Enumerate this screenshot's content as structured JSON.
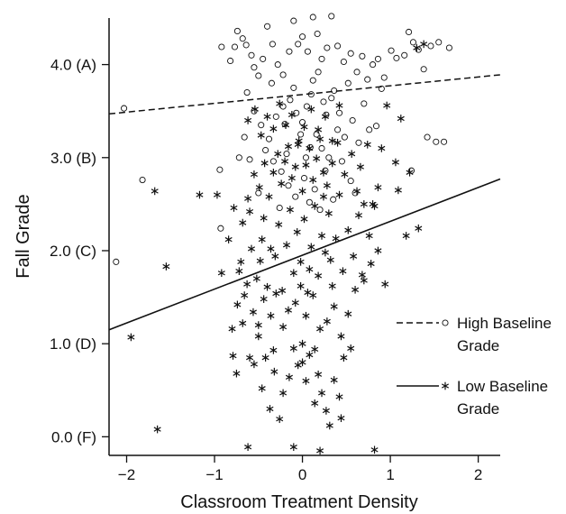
{
  "chart_data": {
    "type": "scatter",
    "xlabel": "Classroom Treatment Density",
    "ylabel": "Fall Grade",
    "xlim": [
      -2.2,
      2.25
    ],
    "ylim": [
      -0.2,
      4.5
    ],
    "x_ticks": [
      {
        "value": -2,
        "label": "−2"
      },
      {
        "value": -1,
        "label": "−1"
      },
      {
        "value": 0,
        "label": "0"
      },
      {
        "value": 1,
        "label": "1"
      },
      {
        "value": 2,
        "label": "2"
      }
    ],
    "y_ticks": [
      {
        "value": 0,
        "label": "0.0 (F)"
      },
      {
        "value": 1,
        "label": "1.0 (D)"
      },
      {
        "value": 2,
        "label": "2.0 (C)"
      },
      {
        "value": 3,
        "label": "3.0 (B)"
      },
      {
        "value": 4,
        "label": "4.0 (A)"
      }
    ],
    "grid": false,
    "legend_position": "right",
    "series": [
      {
        "name": "High Baseline Grade",
        "legend_line1": "High Baseline",
        "legend_line2": "Grade",
        "marker": "open-circle",
        "line_style": "dashed",
        "color": "#111111",
        "fit_line": {
          "x": [
            -2.2,
            2.25
          ],
          "y": [
            3.47,
            3.89
          ]
        },
        "points": [
          [
            -2.03,
            3.53
          ],
          [
            -2.12,
            1.88
          ],
          [
            -1.82,
            2.76
          ],
          [
            -0.93,
            2.24
          ],
          [
            -0.94,
            2.87
          ],
          [
            -0.92,
            4.19
          ],
          [
            -0.82,
            4.04
          ],
          [
            -0.77,
            4.19
          ],
          [
            -0.74,
            4.36
          ],
          [
            -0.68,
            4.28
          ],
          [
            -0.64,
            4.21
          ],
          [
            -0.58,
            4.1
          ],
          [
            -0.55,
            3.97
          ],
          [
            -0.5,
            3.88
          ],
          [
            -0.45,
            4.06
          ],
          [
            -0.4,
            4.41
          ],
          [
            -0.34,
            4.22
          ],
          [
            -0.28,
            4.0
          ],
          [
            -0.22,
            3.89
          ],
          [
            -0.15,
            4.14
          ],
          [
            -0.1,
            4.47
          ],
          [
            -0.05,
            4.22
          ],
          [
            0.0,
            4.3
          ],
          [
            0.06,
            4.14
          ],
          [
            0.12,
            4.51
          ],
          [
            0.17,
            4.33
          ],
          [
            0.22,
            4.06
          ],
          [
            0.28,
            4.18
          ],
          [
            0.33,
            4.52
          ],
          [
            0.4,
            4.2
          ],
          [
            0.47,
            4.03
          ],
          [
            0.55,
            4.12
          ],
          [
            0.62,
            3.92
          ],
          [
            0.68,
            4.09
          ],
          [
            0.74,
            3.84
          ],
          [
            0.8,
            4.0
          ],
          [
            0.86,
            4.06
          ],
          [
            0.93,
            3.86
          ],
          [
            1.01,
            4.15
          ],
          [
            1.07,
            4.07
          ],
          [
            1.16,
            4.1
          ],
          [
            1.26,
            4.24
          ],
          [
            1.32,
            4.16
          ],
          [
            1.46,
            4.2
          ],
          [
            1.55,
            4.24
          ],
          [
            1.67,
            4.18
          ],
          [
            1.21,
            4.35
          ],
          [
            1.38,
            3.95
          ],
          [
            -0.63,
            3.7
          ],
          [
            -0.55,
            3.5
          ],
          [
            -0.47,
            3.35
          ],
          [
            -0.38,
            3.2
          ],
          [
            -0.3,
            3.44
          ],
          [
            -0.22,
            3.55
          ],
          [
            -0.14,
            3.62
          ],
          [
            -0.07,
            3.48
          ],
          [
            0.0,
            3.38
          ],
          [
            0.05,
            3.55
          ],
          [
            0.1,
            3.68
          ],
          [
            0.16,
            3.25
          ],
          [
            0.22,
            3.1
          ],
          [
            0.27,
            3.46
          ],
          [
            0.33,
            3.64
          ],
          [
            0.4,
            3.3
          ],
          [
            0.48,
            3.22
          ],
          [
            0.57,
            3.4
          ],
          [
            0.64,
            3.16
          ],
          [
            0.7,
            3.58
          ],
          [
            0.76,
            3.3
          ],
          [
            0.84,
            3.34
          ],
          [
            0.9,
            3.74
          ],
          [
            1.24,
            2.86
          ],
          [
            1.42,
            3.22
          ],
          [
            1.52,
            3.17
          ],
          [
            1.61,
            3.17
          ],
          [
            -0.42,
            3.08
          ],
          [
            -0.33,
            2.96
          ],
          [
            -0.24,
            2.85
          ],
          [
            -0.16,
            2.7
          ],
          [
            -0.08,
            2.58
          ],
          [
            0.02,
            2.78
          ],
          [
            0.08,
            2.52
          ],
          [
            0.14,
            2.66
          ],
          [
            0.2,
            2.44
          ],
          [
            0.26,
            2.86
          ],
          [
            0.35,
            2.55
          ],
          [
            0.45,
            2.96
          ],
          [
            0.55,
            2.75
          ],
          [
            -0.26,
            2.46
          ],
          [
            -0.72,
            3.0
          ],
          [
            -0.66,
            3.22
          ],
          [
            -0.6,
            2.98
          ],
          [
            -0.18,
            3.04
          ],
          [
            0.04,
            3.0
          ],
          [
            0.3,
            3.0
          ],
          [
            -0.5,
            2.62
          ],
          [
            0.6,
            2.62
          ],
          [
            -0.35,
            3.8
          ],
          [
            0.12,
            3.83
          ],
          [
            0.36,
            3.72
          ],
          [
            -0.1,
            3.75
          ],
          [
            0.18,
            3.92
          ],
          [
            0.52,
            3.8
          ],
          [
            0.24,
            3.6
          ],
          [
            -0.02,
            3.25
          ],
          [
            0.09,
            3.11
          ],
          [
            -0.2,
            3.36
          ],
          [
            0.42,
            3.48
          ]
        ]
      },
      {
        "name": "Low Baseline Grade",
        "legend_line1": "Low Baseline",
        "legend_line2": "Grade",
        "marker": "asterisk",
        "line_style": "solid",
        "color": "#111111",
        "fit_line": {
          "x": [
            -2.2,
            2.25
          ],
          "y": [
            1.15,
            2.77
          ]
        },
        "points": [
          [
            -1.95,
            1.07
          ],
          [
            -1.65,
            0.08
          ],
          [
            -1.55,
            1.83
          ],
          [
            -1.68,
            2.64
          ],
          [
            -1.17,
            2.6
          ],
          [
            -0.97,
            2.6
          ],
          [
            -0.79,
            0.87
          ],
          [
            -0.75,
            0.68
          ],
          [
            -0.68,
            1.22
          ],
          [
            -0.63,
            1.64
          ],
          [
            -0.6,
            0.85
          ],
          [
            -0.55,
            0.78
          ],
          [
            -0.5,
            1.2
          ],
          [
            -0.46,
            0.52
          ],
          [
            -0.42,
            0.85
          ],
          [
            -0.37,
            0.3
          ],
          [
            -0.33,
            0.93
          ],
          [
            -0.26,
            0.19
          ],
          [
            -0.22,
            0.47
          ],
          [
            -0.15,
            0.64
          ],
          [
            -0.1,
            0.95
          ],
          [
            -0.05,
            0.77
          ],
          [
            0.0,
            0.8
          ],
          [
            0.04,
            0.6
          ],
          [
            0.08,
            0.88
          ],
          [
            0.14,
            0.36
          ],
          [
            0.18,
            0.67
          ],
          [
            0.22,
            0.47
          ],
          [
            0.27,
            0.28
          ],
          [
            0.31,
            0.12
          ],
          [
            0.36,
            0.61
          ],
          [
            0.42,
            0.43
          ],
          [
            0.47,
            0.85
          ],
          [
            0.55,
            0.95
          ],
          [
            0.82,
            -0.14
          ],
          [
            -0.62,
            -0.11
          ],
          [
            -0.1,
            -0.11
          ],
          [
            0.2,
            -0.15
          ],
          [
            -0.72,
            1.78
          ],
          [
            -0.66,
            1.52
          ],
          [
            -0.58,
            2.02
          ],
          [
            -0.52,
            1.7
          ],
          [
            -0.48,
            1.89
          ],
          [
            -0.44,
            2.35
          ],
          [
            -0.4,
            1.61
          ],
          [
            -0.36,
            2.02
          ],
          [
            -0.31,
            1.94
          ],
          [
            -0.27,
            2.28
          ],
          [
            -0.23,
            1.57
          ],
          [
            -0.18,
            2.06
          ],
          [
            -0.14,
            2.44
          ],
          [
            -0.1,
            1.76
          ],
          [
            -0.06,
            2.2
          ],
          [
            -0.02,
            1.88
          ],
          [
            0.02,
            2.34
          ],
          [
            0.06,
            1.55
          ],
          [
            0.1,
            2.04
          ],
          [
            0.14,
            2.48
          ],
          [
            0.18,
            1.73
          ],
          [
            0.22,
            2.16
          ],
          [
            0.26,
            1.98
          ],
          [
            0.3,
            2.4
          ],
          [
            0.34,
            1.62
          ],
          [
            0.38,
            2.13
          ],
          [
            0.42,
            2.6
          ],
          [
            0.46,
            1.78
          ],
          [
            0.52,
            2.22
          ],
          [
            0.58,
            1.94
          ],
          [
            0.64,
            2.38
          ],
          [
            0.7,
            1.68
          ],
          [
            0.76,
            2.16
          ],
          [
            0.82,
            2.48
          ],
          [
            -0.68,
            2.3
          ],
          [
            -0.62,
            2.56
          ],
          [
            -0.55,
            2.82
          ],
          [
            -0.49,
            2.68
          ],
          [
            -0.43,
            2.94
          ],
          [
            -0.38,
            2.58
          ],
          [
            -0.33,
            2.84
          ],
          [
            -0.28,
            3.04
          ],
          [
            -0.24,
            2.72
          ],
          [
            -0.2,
            2.96
          ],
          [
            -0.16,
            3.12
          ],
          [
            -0.12,
            2.78
          ],
          [
            -0.08,
            2.9
          ],
          [
            -0.04,
            3.18
          ],
          [
            0.0,
            2.64
          ],
          [
            0.04,
            2.92
          ],
          [
            0.08,
            3.1
          ],
          [
            0.12,
            2.76
          ],
          [
            0.16,
            2.99
          ],
          [
            0.2,
            3.2
          ],
          [
            0.24,
            2.84
          ],
          [
            0.28,
            2.7
          ],
          [
            0.34,
            2.94
          ],
          [
            0.4,
            3.16
          ],
          [
            0.48,
            2.82
          ],
          [
            0.56,
            3.04
          ],
          [
            0.66,
            2.9
          ],
          [
            0.74,
            3.14
          ],
          [
            0.9,
            3.1
          ],
          [
            0.96,
            3.56
          ],
          [
            1.06,
            2.95
          ],
          [
            1.12,
            3.42
          ],
          [
            1.22,
            2.84
          ],
          [
            1.3,
            4.18
          ],
          [
            1.38,
            4.22
          ],
          [
            1.09,
            2.65
          ],
          [
            1.18,
            2.16
          ],
          [
            1.32,
            2.24
          ],
          [
            -0.62,
            3.4
          ],
          [
            -0.54,
            3.52
          ],
          [
            -0.47,
            3.24
          ],
          [
            -0.4,
            3.44
          ],
          [
            -0.33,
            3.31
          ],
          [
            -0.26,
            3.58
          ],
          [
            -0.19,
            3.35
          ],
          [
            -0.12,
            3.46
          ],
          [
            -0.05,
            3.14
          ],
          [
            0.02,
            3.33
          ],
          [
            0.1,
            3.52
          ],
          [
            0.18,
            3.3
          ],
          [
            0.26,
            3.44
          ],
          [
            0.34,
            3.18
          ],
          [
            0.42,
            3.56
          ],
          [
            -0.8,
            1.16
          ],
          [
            -0.74,
            1.42
          ],
          [
            -0.7,
            1.88
          ],
          [
            -0.56,
            1.34
          ],
          [
            -0.5,
            1.08
          ],
          [
            -0.44,
            1.48
          ],
          [
            -0.36,
            1.3
          ],
          [
            -0.3,
            1.54
          ],
          [
            -0.22,
            1.18
          ],
          [
            -0.16,
            1.36
          ],
          [
            -0.08,
            1.44
          ],
          [
            0.04,
            1.3
          ],
          [
            0.12,
            1.52
          ],
          [
            0.2,
            1.16
          ],
          [
            0.28,
            1.24
          ],
          [
            0.36,
            1.4
          ],
          [
            0.44,
            1.08
          ],
          [
            0.52,
            1.32
          ],
          [
            0.6,
            1.58
          ],
          [
            0.68,
            1.74
          ],
          [
            0.78,
            1.86
          ],
          [
            0.86,
            2.0
          ],
          [
            0.94,
            1.64
          ],
          [
            0.62,
            2.64
          ],
          [
            0.7,
            2.5
          ],
          [
            0.8,
            2.5
          ],
          [
            -0.92,
            1.76
          ],
          [
            -0.84,
            2.12
          ],
          [
            -0.78,
            2.46
          ],
          [
            0.86,
            2.68
          ],
          [
            -0.46,
            2.12
          ],
          [
            0.08,
            1.8
          ],
          [
            0.32,
            1.9
          ],
          [
            -0.02,
            1.62
          ],
          [
            0.24,
            2.58
          ],
          [
            0.14,
            0.94
          ],
          [
            -0.32,
            0.7
          ],
          [
            0.0,
            1.0
          ],
          [
            0.44,
            0.2
          ],
          [
            -0.6,
            2.42
          ]
        ]
      }
    ]
  }
}
